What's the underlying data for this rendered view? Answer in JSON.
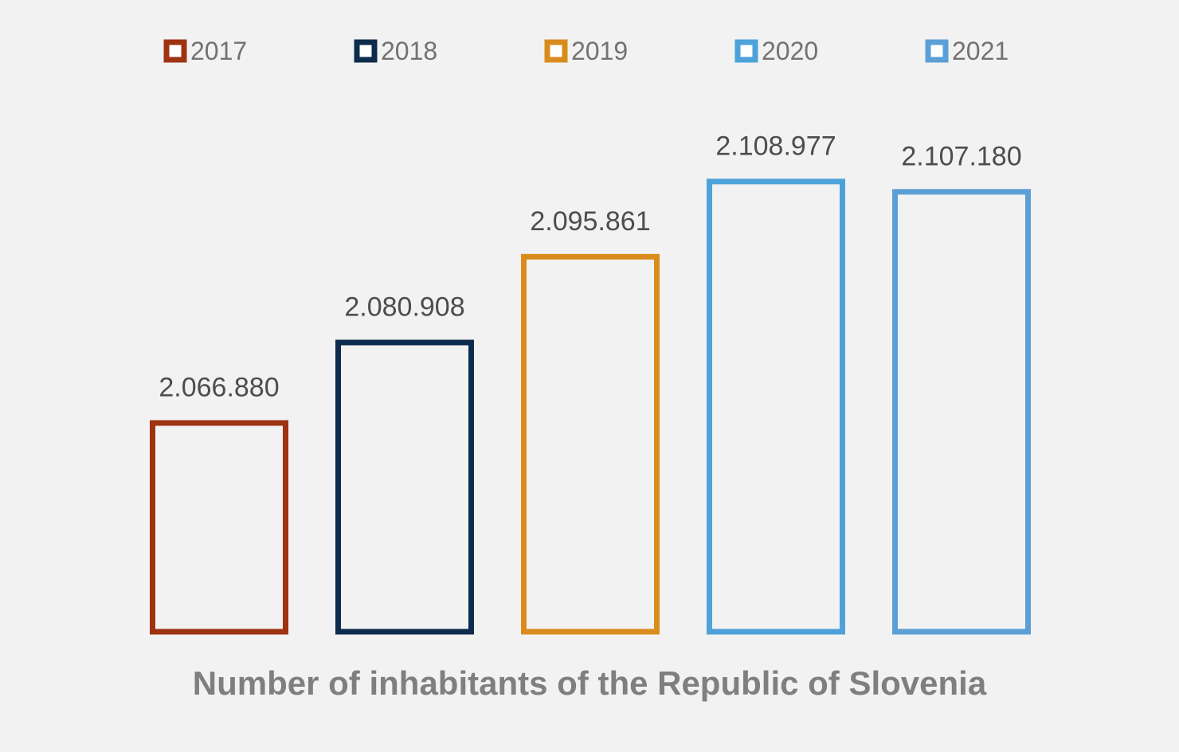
{
  "chart_data": {
    "type": "bar",
    "title": "",
    "xlabel": "Number of inhabitants of the Republic of Slovenia",
    "ylabel": "",
    "ylim": [
      2030000,
      2120000
    ],
    "grid": false,
    "legend_position": "top",
    "bar_style": "outline",
    "series": [
      {
        "name": "2017",
        "value": 2066880,
        "label": "2.066.880",
        "color": "#9e3312"
      },
      {
        "name": "2018",
        "value": 2080908,
        "label": "2.080.908",
        "color": "#0d2b4c"
      },
      {
        "name": "2019",
        "value": 2095861,
        "label": "2.095.861",
        "color": "#d98c1c"
      },
      {
        "name": "2020",
        "value": 2108977,
        "label": "2.108.977",
        "color": "#4da2d9"
      },
      {
        "name": "2021",
        "value": 2107180,
        "label": "2.107.180",
        "color": "#5b9fd6"
      }
    ]
  }
}
